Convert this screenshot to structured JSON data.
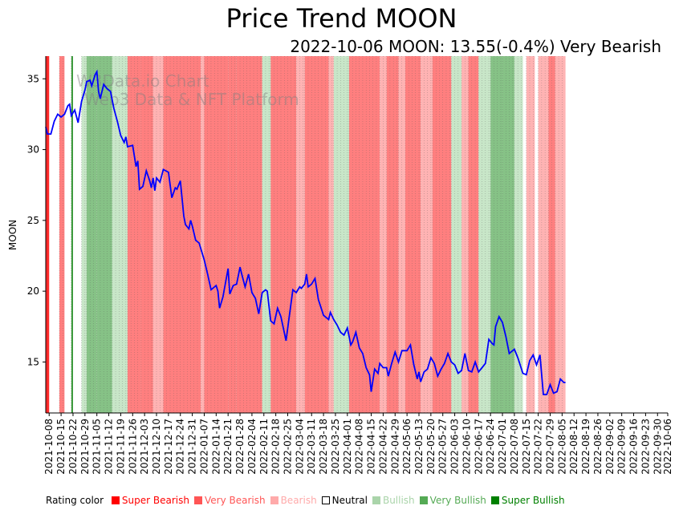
{
  "chart_data": {
    "type": "line",
    "title": "Price Trend MOON",
    "subtitle": "2022-10-06 MOON: 13.55(-0.4%) Very Bearish",
    "ylabel": "MOON",
    "xlabel": "",
    "ylim": [
      11.4,
      36.6
    ],
    "yticks": [
      15,
      20,
      25,
      30,
      35
    ],
    "x_start": "2021-10-06",
    "x_end": "2022-10-06",
    "xticks": [
      "2021-10-08",
      "2021-10-15",
      "2021-10-22",
      "2021-10-29",
      "2021-11-05",
      "2021-11-12",
      "2021-11-19",
      "2021-11-26",
      "2021-12-03",
      "2021-12-10",
      "2021-12-17",
      "2021-12-24",
      "2021-12-31",
      "2022-01-07",
      "2022-01-14",
      "2022-01-21",
      "2022-01-28",
      "2022-02-04",
      "2022-02-11",
      "2022-02-18",
      "2022-02-25",
      "2022-03-04",
      "2022-03-11",
      "2022-03-18",
      "2022-03-25",
      "2022-04-01",
      "2022-04-08",
      "2022-04-15",
      "2022-04-22",
      "2022-04-29",
      "2022-05-06",
      "2022-05-13",
      "2022-05-20",
      "2022-05-27",
      "2022-06-03",
      "2022-06-10",
      "2022-06-17",
      "2022-06-24",
      "2022-07-01",
      "2022-07-08",
      "2022-07-15",
      "2022-07-22",
      "2022-07-29",
      "2022-08-05",
      "2022-08-12",
      "2022-08-19",
      "2022-08-26",
      "2022-09-02",
      "2022-09-09",
      "2022-09-16",
      "2022-09-23",
      "2022-09-30",
      "2022-10-06"
    ],
    "watermark": [
      "W3Data.io Chart",
      "Web3 Data & NFT Platform"
    ],
    "series": [
      {
        "name": "MOON",
        "color": "#0000ff",
        "points": [
          [
            "2021-10-06",
            31.6
          ],
          [
            "2021-10-07",
            31.1
          ],
          [
            "2021-10-09",
            31.1
          ],
          [
            "2021-10-11",
            32.0
          ],
          [
            "2021-10-13",
            32.5
          ],
          [
            "2021-10-15",
            32.3
          ],
          [
            "2021-10-17",
            32.5
          ],
          [
            "2021-10-19",
            33.1
          ],
          [
            "2021-10-20",
            33.2
          ],
          [
            "2021-10-21",
            32.4
          ],
          [
            "2021-10-23",
            32.8
          ],
          [
            "2021-10-25",
            31.9
          ],
          [
            "2021-10-27",
            33.4
          ],
          [
            "2021-10-29",
            34.2
          ],
          [
            "2021-10-30",
            34.8
          ],
          [
            "2021-11-01",
            34.9
          ],
          [
            "2021-11-02",
            34.5
          ],
          [
            "2021-11-04",
            35.3
          ],
          [
            "2021-11-05",
            35.5
          ],
          [
            "2021-11-06",
            34.1
          ],
          [
            "2021-11-07",
            33.6
          ],
          [
            "2021-11-09",
            34.6
          ],
          [
            "2021-11-11",
            34.3
          ],
          [
            "2021-11-13",
            34.1
          ],
          [
            "2021-11-15",
            32.9
          ],
          [
            "2021-11-17",
            32.0
          ],
          [
            "2021-11-19",
            31.0
          ],
          [
            "2021-11-21",
            30.5
          ],
          [
            "2021-11-22",
            30.9
          ],
          [
            "2021-11-23",
            30.2
          ],
          [
            "2021-11-26",
            30.3
          ],
          [
            "2021-11-28",
            28.8
          ],
          [
            "2021-11-29",
            29.2
          ],
          [
            "2021-11-30",
            27.2
          ],
          [
            "2021-12-02",
            27.4
          ],
          [
            "2021-12-04",
            28.5
          ],
          [
            "2021-12-06",
            27.8
          ],
          [
            "2021-12-07",
            27.3
          ],
          [
            "2021-12-08",
            28.0
          ],
          [
            "2021-12-09",
            27.1
          ],
          [
            "2021-12-10",
            28.0
          ],
          [
            "2021-12-12",
            27.7
          ],
          [
            "2021-12-14",
            28.6
          ],
          [
            "2021-12-17",
            28.4
          ],
          [
            "2021-12-19",
            26.6
          ],
          [
            "2021-12-21",
            27.3
          ],
          [
            "2021-12-22",
            27.2
          ],
          [
            "2021-12-24",
            27.8
          ],
          [
            "2021-12-26",
            25.3
          ],
          [
            "2021-12-27",
            24.7
          ],
          [
            "2021-12-29",
            24.4
          ],
          [
            "2021-12-30",
            25.0
          ],
          [
            "2021-12-31",
            24.6
          ],
          [
            "2022-01-02",
            23.6
          ],
          [
            "2022-01-04",
            23.4
          ],
          [
            "2022-01-07",
            22.2
          ],
          [
            "2022-01-09",
            21.2
          ],
          [
            "2022-01-11",
            20.1
          ],
          [
            "2022-01-14",
            20.4
          ],
          [
            "2022-01-15",
            20.0
          ],
          [
            "2022-01-16",
            18.8
          ],
          [
            "2022-01-18",
            19.6
          ],
          [
            "2022-01-21",
            21.6
          ],
          [
            "2022-01-22",
            19.8
          ],
          [
            "2022-01-24",
            20.4
          ],
          [
            "2022-01-26",
            20.5
          ],
          [
            "2022-01-28",
            21.7
          ],
          [
            "2022-01-29",
            21.2
          ],
          [
            "2022-01-31",
            20.3
          ],
          [
            "2022-02-02",
            21.2
          ],
          [
            "2022-02-04",
            19.9
          ],
          [
            "2022-02-06",
            19.5
          ],
          [
            "2022-02-08",
            18.4
          ],
          [
            "2022-02-10",
            19.9
          ],
          [
            "2022-02-12",
            20.1
          ],
          [
            "2022-02-13",
            20.0
          ],
          [
            "2022-02-15",
            17.9
          ],
          [
            "2022-02-17",
            17.7
          ],
          [
            "2022-02-19",
            18.8
          ],
          [
            "2022-02-21",
            18.2
          ],
          [
            "2022-02-24",
            16.5
          ],
          [
            "2022-02-26",
            18.3
          ],
          [
            "2022-02-28",
            20.1
          ],
          [
            "2022-03-02",
            19.9
          ],
          [
            "2022-03-04",
            20.3
          ],
          [
            "2022-03-05",
            20.2
          ],
          [
            "2022-03-07",
            20.5
          ],
          [
            "2022-03-08",
            21.2
          ],
          [
            "2022-03-09",
            20.3
          ],
          [
            "2022-03-11",
            20.5
          ],
          [
            "2022-03-13",
            20.9
          ],
          [
            "2022-03-15",
            19.4
          ],
          [
            "2022-03-18",
            18.3
          ],
          [
            "2022-03-21",
            18.0
          ],
          [
            "2022-03-22",
            18.5
          ],
          [
            "2022-03-24",
            18.0
          ],
          [
            "2022-03-26",
            17.6
          ],
          [
            "2022-03-28",
            17.1
          ],
          [
            "2022-03-30",
            16.9
          ],
          [
            "2022-04-01",
            17.4
          ],
          [
            "2022-04-03",
            16.2
          ],
          [
            "2022-04-04",
            16.4
          ],
          [
            "2022-04-06",
            17.1
          ],
          [
            "2022-04-08",
            16.0
          ],
          [
            "2022-04-10",
            15.6
          ],
          [
            "2022-04-12",
            14.6
          ],
          [
            "2022-04-14",
            14.1
          ],
          [
            "2022-04-15",
            12.9
          ],
          [
            "2022-04-17",
            14.5
          ],
          [
            "2022-04-19",
            14.2
          ],
          [
            "2022-04-20",
            14.9
          ],
          [
            "2022-04-22",
            14.6
          ],
          [
            "2022-04-24",
            14.6
          ],
          [
            "2022-04-25",
            14.0
          ],
          [
            "2022-04-27",
            14.9
          ],
          [
            "2022-04-29",
            15.7
          ],
          [
            "2022-05-01",
            15.0
          ],
          [
            "2022-05-03",
            15.8
          ],
          [
            "2022-05-06",
            15.8
          ],
          [
            "2022-05-08",
            16.2
          ],
          [
            "2022-05-10",
            14.8
          ],
          [
            "2022-05-12",
            13.8
          ],
          [
            "2022-05-13",
            14.3
          ],
          [
            "2022-05-14",
            13.6
          ],
          [
            "2022-05-16",
            14.3
          ],
          [
            "2022-05-18",
            14.5
          ],
          [
            "2022-05-20",
            15.3
          ],
          [
            "2022-05-22",
            14.9
          ],
          [
            "2022-05-24",
            14.0
          ],
          [
            "2022-05-26",
            14.5
          ],
          [
            "2022-05-28",
            14.9
          ],
          [
            "2022-05-30",
            15.6
          ],
          [
            "2022-06-01",
            15.0
          ],
          [
            "2022-06-03",
            14.8
          ],
          [
            "2022-06-05",
            14.2
          ],
          [
            "2022-06-07",
            14.4
          ],
          [
            "2022-06-09",
            15.6
          ],
          [
            "2022-06-11",
            14.4
          ],
          [
            "2022-06-13",
            14.3
          ],
          [
            "2022-06-15",
            15.0
          ],
          [
            "2022-06-17",
            14.3
          ],
          [
            "2022-06-19",
            14.6
          ],
          [
            "2022-06-21",
            14.9
          ],
          [
            "2022-06-23",
            16.6
          ],
          [
            "2022-06-25",
            16.3
          ],
          [
            "2022-06-26",
            16.2
          ],
          [
            "2022-06-27",
            17.5
          ],
          [
            "2022-06-29",
            18.2
          ],
          [
            "2022-07-01",
            17.8
          ],
          [
            "2022-07-03",
            16.8
          ],
          [
            "2022-07-05",
            15.6
          ],
          [
            "2022-07-08",
            15.9
          ],
          [
            "2022-07-10",
            15.3
          ],
          [
            "2022-07-13",
            14.2
          ],
          [
            "2022-07-15",
            14.1
          ],
          [
            "2022-07-17",
            15.1
          ],
          [
            "2022-07-19",
            15.5
          ],
          [
            "2022-07-21",
            14.8
          ],
          [
            "2022-07-23",
            15.5
          ],
          [
            "2022-07-25",
            12.7
          ],
          [
            "2022-07-27",
            12.7
          ],
          [
            "2022-07-29",
            13.4
          ],
          [
            "2022-07-31",
            12.8
          ],
          [
            "2022-08-02",
            12.9
          ],
          [
            "2022-08-04",
            13.8
          ],
          [
            "2022-08-06",
            13.55
          ],
          [
            "2022-08-07",
            13.55
          ]
        ]
      }
    ],
    "bands": [
      {
        "from": "2021-10-06",
        "to": "2021-10-08",
        "rating": "Super Bearish"
      },
      {
        "from": "2021-10-14",
        "to": "2021-10-17",
        "rating": "Very Bearish"
      },
      {
        "from": "2021-10-21",
        "to": "2021-10-22",
        "rating": "Super Bullish"
      },
      {
        "from": "2021-10-27",
        "to": "2021-10-30",
        "rating": "Bullish"
      },
      {
        "from": "2021-10-30",
        "to": "2021-11-05",
        "rating": "Very Bullish"
      },
      {
        "from": "2021-11-05",
        "to": "2021-11-14",
        "rating": "Very Bullish"
      },
      {
        "from": "2021-11-14",
        "to": "2021-11-23",
        "rating": "Bullish"
      },
      {
        "from": "2021-11-23",
        "to": "2021-12-01",
        "rating": "Very Bearish"
      },
      {
        "from": "2021-12-01",
        "to": "2021-12-08",
        "rating": "Very Bearish"
      },
      {
        "from": "2021-12-08",
        "to": "2021-12-14",
        "rating": "Bearish"
      },
      {
        "from": "2021-12-14",
        "to": "2022-01-05",
        "rating": "Very Bearish"
      },
      {
        "from": "2022-01-05",
        "to": "2022-01-07",
        "rating": "Bearish"
      },
      {
        "from": "2022-01-07",
        "to": "2022-01-21",
        "rating": "Very Bearish"
      },
      {
        "from": "2022-01-21",
        "to": "2022-01-26",
        "rating": "Very Bearish"
      },
      {
        "from": "2022-01-26",
        "to": "2022-02-10",
        "rating": "Very Bearish"
      },
      {
        "from": "2022-02-10",
        "to": "2022-02-15",
        "rating": "Bullish"
      },
      {
        "from": "2022-02-15",
        "to": "2022-03-02",
        "rating": "Very Bearish"
      },
      {
        "from": "2022-03-02",
        "to": "2022-03-07",
        "rating": "Bearish"
      },
      {
        "from": "2022-03-07",
        "to": "2022-03-21",
        "rating": "Very Bearish"
      },
      {
        "from": "2022-03-21",
        "to": "2022-03-24",
        "rating": "Bearish"
      },
      {
        "from": "2022-03-24",
        "to": "2022-03-30",
        "rating": "Bullish"
      },
      {
        "from": "2022-03-30",
        "to": "2022-04-02",
        "rating": "Bullish"
      },
      {
        "from": "2022-04-02",
        "to": "2022-04-20",
        "rating": "Very Bearish"
      },
      {
        "from": "2022-04-20",
        "to": "2022-04-24",
        "rating": "Bearish"
      },
      {
        "from": "2022-04-24",
        "to": "2022-05-01",
        "rating": "Very Bearish"
      },
      {
        "from": "2022-05-01",
        "to": "2022-05-05",
        "rating": "Bearish"
      },
      {
        "from": "2022-05-05",
        "to": "2022-05-14",
        "rating": "Very Bearish"
      },
      {
        "from": "2022-05-14",
        "to": "2022-05-21",
        "rating": "Bearish"
      },
      {
        "from": "2022-05-21",
        "to": "2022-06-01",
        "rating": "Very Bearish"
      },
      {
        "from": "2022-06-01",
        "to": "2022-06-07",
        "rating": "Bullish"
      },
      {
        "from": "2022-06-07",
        "to": "2022-06-11",
        "rating": "Bearish"
      },
      {
        "from": "2022-06-11",
        "to": "2022-06-17",
        "rating": "Very Bearish"
      },
      {
        "from": "2022-06-17",
        "to": "2022-06-24",
        "rating": "Bullish"
      },
      {
        "from": "2022-06-24",
        "to": "2022-07-01",
        "rating": "Very Bullish"
      },
      {
        "from": "2022-07-01",
        "to": "2022-07-08",
        "rating": "Very Bullish"
      },
      {
        "from": "2022-07-08",
        "to": "2022-07-13",
        "rating": "Bullish"
      },
      {
        "from": "2022-07-15",
        "to": "2022-07-20",
        "rating": "Bearish"
      },
      {
        "from": "2022-07-22",
        "to": "2022-07-28",
        "rating": "Bearish"
      },
      {
        "from": "2022-07-28",
        "to": "2022-08-01",
        "rating": "Very Bearish"
      },
      {
        "from": "2022-08-01",
        "to": "2022-08-07",
        "rating": "Bearish"
      }
    ],
    "legend": {
      "title": "Rating color",
      "items": [
        {
          "label": "Super Bearish",
          "color": "#ff0000"
        },
        {
          "label": "Very Bearish",
          "color": "#ff5555"
        },
        {
          "label": "Bearish",
          "color": "#ffaaaa"
        },
        {
          "label": "Neutral",
          "color": "#000000"
        },
        {
          "label": "Bullish",
          "color": "#aad4aa"
        },
        {
          "label": "Very Bullish",
          "color": "#55aa55"
        },
        {
          "label": "Super Bullish",
          "color": "#008000"
        }
      ]
    },
    "rating_colors": {
      "Super Bearish": "#ff2a2a",
      "Very Bearish": "#ff7f7f",
      "Bearish": "#ffb3b3",
      "Neutral": "#ffffff",
      "Bullish": "#c8e6c8",
      "Very Bullish": "#86c286",
      "Super Bullish": "#3c9a3c"
    }
  }
}
